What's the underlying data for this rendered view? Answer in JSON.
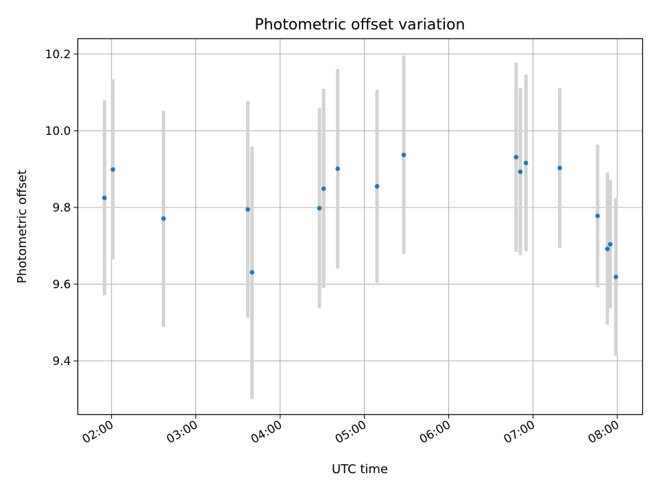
{
  "chart_data": {
    "type": "scatter",
    "title": "Photometric offset variation",
    "xlabel": "UTC time",
    "ylabel": "Photometric offset",
    "grid": true,
    "x_range": [
      "01:36",
      "08:18"
    ],
    "ylim": [
      9.26,
      10.24
    ],
    "x_ticks": [
      "02:00",
      "03:00",
      "04:00",
      "05:00",
      "06:00",
      "07:00",
      "08:00"
    ],
    "y_ticks": [
      9.4,
      9.6,
      9.8,
      10.0,
      10.2
    ],
    "y_tick_labels": [
      "9.4",
      "9.6",
      "9.8",
      "10.0",
      "10.2"
    ],
    "marker_color": "#1f77b4",
    "errorbar_color": "#d3d3d3",
    "points": [
      {
        "time": "01:55",
        "value": 9.825,
        "low": 9.571,
        "high": 10.079
      },
      {
        "time": "02:01",
        "value": 9.899,
        "low": 9.664,
        "high": 10.134
      },
      {
        "time": "02:37",
        "value": 9.771,
        "low": 9.489,
        "high": 10.052
      },
      {
        "time": "03:37",
        "value": 9.795,
        "low": 9.512,
        "high": 10.078
      },
      {
        "time": "03:40",
        "value": 9.631,
        "low": 9.301,
        "high": 9.959
      },
      {
        "time": "04:28",
        "value": 9.798,
        "low": 9.537,
        "high": 10.06
      },
      {
        "time": "04:31",
        "value": 9.849,
        "low": 9.59,
        "high": 10.109
      },
      {
        "time": "04:41",
        "value": 9.901,
        "low": 9.641,
        "high": 10.161
      },
      {
        "time": "05:09",
        "value": 9.855,
        "low": 9.603,
        "high": 10.107
      },
      {
        "time": "05:28",
        "value": 9.937,
        "low": 9.679,
        "high": 10.196
      },
      {
        "time": "06:48",
        "value": 9.931,
        "low": 9.684,
        "high": 10.178
      },
      {
        "time": "06:51",
        "value": 9.893,
        "low": 9.676,
        "high": 10.111
      },
      {
        "time": "06:55",
        "value": 9.916,
        "low": 9.686,
        "high": 10.146
      },
      {
        "time": "07:19",
        "value": 9.903,
        "low": 9.695,
        "high": 10.111
      },
      {
        "time": "07:46",
        "value": 9.778,
        "low": 9.592,
        "high": 9.964
      },
      {
        "time": "07:53",
        "value": 9.692,
        "low": 9.494,
        "high": 9.891
      },
      {
        "time": "07:55",
        "value": 9.704,
        "low": 9.537,
        "high": 9.871
      },
      {
        "time": "07:59",
        "value": 9.619,
        "low": 9.414,
        "high": 9.824
      }
    ]
  }
}
